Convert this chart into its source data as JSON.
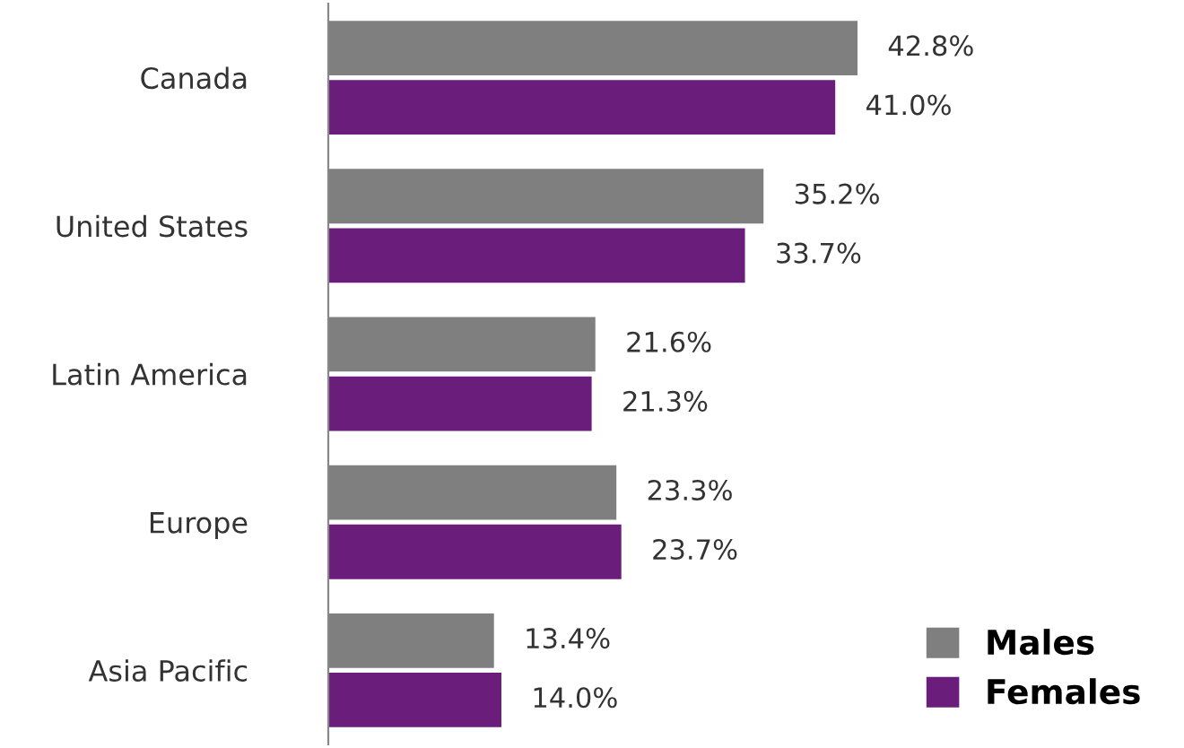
{
  "chart_data": {
    "type": "bar",
    "orientation": "horizontal",
    "categories": [
      "Canada",
      "United States",
      "Latin America",
      "Europe",
      "Asia Pacific"
    ],
    "series": [
      {
        "name": "Males",
        "color": "#7f7f7f",
        "values": [
          42.8,
          35.2,
          21.6,
          23.3,
          13.4
        ],
        "value_labels": [
          "42.8%",
          "35.2%",
          "21.6%",
          "23.3%",
          "13.4%"
        ]
      },
      {
        "name": "Females",
        "color": "#6b1d7c",
        "values": [
          41.0,
          33.7,
          21.3,
          23.7,
          14.0
        ],
        "value_labels": [
          "41.0%",
          "33.7%",
          "21.3%",
          "23.7%",
          "14.0%"
        ]
      }
    ],
    "legend": "bottom right",
    "grid": false,
    "tick_labels": "y"
  }
}
